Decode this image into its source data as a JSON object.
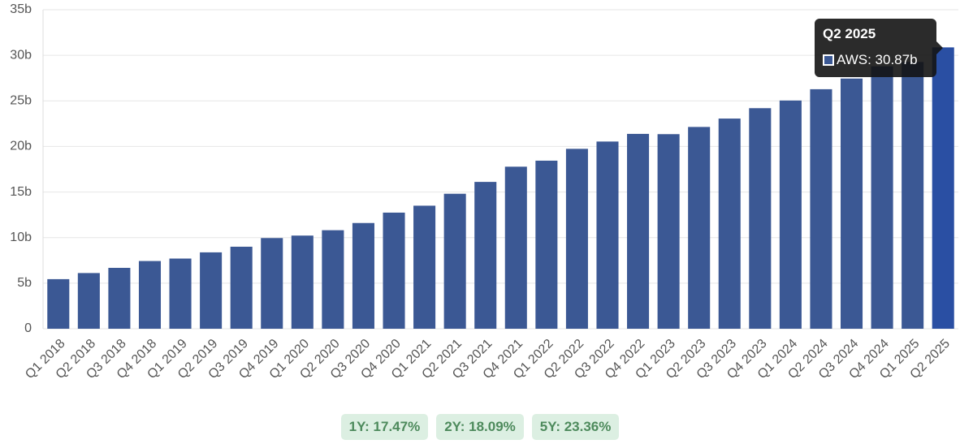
{
  "chart_data": {
    "type": "bar",
    "categories": [
      "Q1 2018",
      "Q2 2018",
      "Q3 2018",
      "Q4 2018",
      "Q1 2019",
      "Q2 2019",
      "Q3 2019",
      "Q4 2019",
      "Q1 2020",
      "Q2 2020",
      "Q3 2020",
      "Q4 2020",
      "Q1 2021",
      "Q2 2021",
      "Q3 2021",
      "Q4 2021",
      "Q1 2022",
      "Q2 2022",
      "Q3 2022",
      "Q4 2022",
      "Q1 2023",
      "Q2 2023",
      "Q3 2023",
      "Q4 2023",
      "Q1 2024",
      "Q2 2024",
      "Q3 2024",
      "Q4 2024",
      "Q1 2025",
      "Q2 2025"
    ],
    "series": [
      {
        "name": "AWS",
        "color": "#3b5894",
        "highlight_color": "#2a4fa3",
        "values": [
          5.44,
          6.11,
          6.68,
          7.43,
          7.7,
          8.38,
          9.0,
          9.95,
          10.22,
          10.81,
          11.6,
          12.74,
          13.5,
          14.81,
          16.11,
          17.78,
          18.44,
          19.74,
          20.54,
          21.38,
          21.35,
          22.14,
          23.06,
          24.2,
          25.04,
          26.28,
          27.45,
          28.79,
          29.27,
          30.87
        ]
      }
    ],
    "ylim": [
      0,
      35
    ],
    "yticks": [
      0,
      {
        "value": 5,
        "label": "5b"
      },
      {
        "value": 10,
        "label": "10b"
      },
      {
        "value": 15,
        "label": "15b"
      },
      {
        "value": 20,
        "label": "20b"
      },
      {
        "value": 25,
        "label": "25b"
      },
      {
        "value": 30,
        "label": "30b"
      },
      {
        "value": 35,
        "label": "35b"
      }
    ],
    "grid": true,
    "tooltip": {
      "title": "Q2 2025",
      "label": "AWS: 30.87b",
      "index": 29
    }
  },
  "badges": [
    "1Y: 17.47%",
    "2Y: 18.09%",
    "5Y: 23.36%"
  ]
}
